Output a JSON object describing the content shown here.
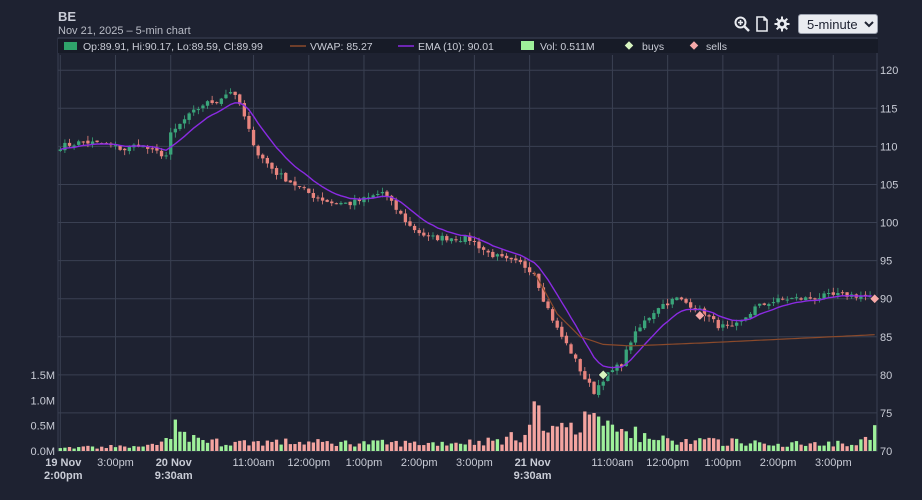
{
  "header": {
    "symbol": "BE",
    "subtitle": "Nov 21, 2025 – 5-min chart"
  },
  "toolbar": {
    "icons": [
      "zoom-in-icon",
      "document-icon",
      "gear-icon"
    ],
    "interval_selected": "5-minute",
    "interval_options": [
      "5-minute"
    ]
  },
  "legend": {
    "ohlc_label": "Op:89.91, Hi:90.17, Lo:89.59, Cl:89.99",
    "vwap_label": "VWAP: 85.27",
    "ema_label": "EMA (10): 90.01",
    "vol_label": "Vol: 0.511M",
    "buys_label": "buys",
    "sells_label": "sells"
  },
  "colors": {
    "background": "#1e2231",
    "grid": "#3a4052",
    "up": "#3aa57a",
    "down": "#e8847e",
    "vol_up": "#9ef09a",
    "vol_down": "#f4a4a0",
    "ema": "#8a2be2",
    "vwap": "#8b4a2b",
    "buy_marker": "#d8f5c0",
    "sell_marker": "#f6a8a8"
  },
  "chart_data": {
    "type": "candlestick",
    "title": "BE",
    "ylim": [
      70,
      122
    ],
    "yticks": [
      70,
      75,
      80,
      85,
      90,
      95,
      100,
      105,
      110,
      115,
      120
    ],
    "volume_ylim": [
      0,
      1.5
    ],
    "volume_ticks": [
      "0.0M",
      "0.5M",
      "1.0M",
      "1.5M"
    ],
    "xticks": [
      {
        "bar": 0,
        "label": "19 Nov",
        "label2": "2:00pm",
        "bold": true
      },
      {
        "bar": 12,
        "label": "3:00pm"
      },
      {
        "bar": 24,
        "label": "20 Nov",
        "label2": "9:30am",
        "bold": true
      },
      {
        "bar": 42,
        "label": "11:00am"
      },
      {
        "bar": 54,
        "label": "12:00pm"
      },
      {
        "bar": 66,
        "label": "1:00pm"
      },
      {
        "bar": 78,
        "label": "2:00pm"
      },
      {
        "bar": 90,
        "label": "3:00pm"
      },
      {
        "bar": 102,
        "label": "21 Nov",
        "label2": "9:30am",
        "bold": true
      },
      {
        "bar": 120,
        "label": "11:00am"
      },
      {
        "bar": 132,
        "label": "12:00pm"
      },
      {
        "bar": 144,
        "label": "1:00pm"
      },
      {
        "bar": 156,
        "label": "2:00pm"
      },
      {
        "bar": 168,
        "label": "3:00pm"
      }
    ],
    "close_anchors": [
      [
        0,
        110
      ],
      [
        5,
        110.6
      ],
      [
        10,
        110.2
      ],
      [
        14,
        109.6
      ],
      [
        17,
        110.3
      ],
      [
        20,
        109.4
      ],
      [
        23,
        108.8
      ],
      [
        24,
        111.5
      ],
      [
        27,
        113.5
      ],
      [
        31,
        115.5
      ],
      [
        34,
        116
      ],
      [
        37,
        117.3
      ],
      [
        39,
        115.5
      ],
      [
        41,
        112
      ],
      [
        43,
        109
      ],
      [
        47,
        106.5
      ],
      [
        51,
        105
      ],
      [
        55,
        103.5
      ],
      [
        59,
        102.6
      ],
      [
        63,
        102.5
      ],
      [
        67,
        103.2
      ],
      [
        70,
        104
      ],
      [
        72,
        102.5
      ],
      [
        76,
        99.5
      ],
      [
        80,
        98
      ],
      [
        85,
        98
      ],
      [
        89,
        97.8
      ],
      [
        93,
        96
      ],
      [
        97,
        95
      ],
      [
        100,
        94.6
      ],
      [
        103,
        93.5
      ],
      [
        105,
        90
      ],
      [
        108,
        86
      ],
      [
        111,
        83
      ],
      [
        114,
        79.5
      ],
      [
        116,
        77.8
      ],
      [
        118,
        79.5
      ],
      [
        120,
        80.5
      ],
      [
        122,
        81.5
      ],
      [
        124,
        84.5
      ],
      [
        127,
        87
      ],
      [
        130,
        89
      ],
      [
        134,
        90
      ],
      [
        137,
        89.2
      ],
      [
        140,
        88
      ],
      [
        143,
        86.5
      ],
      [
        146,
        86
      ],
      [
        148,
        87
      ],
      [
        151,
        88.8
      ],
      [
        154,
        89.5
      ],
      [
        158,
        90
      ],
      [
        162,
        90
      ],
      [
        166,
        90.3
      ],
      [
        170,
        90.5
      ],
      [
        174,
        90.4
      ],
      [
        177,
        90
      ]
    ],
    "vwap_anchors": [
      [
        103,
        93.5
      ],
      [
        108,
        88
      ],
      [
        113,
        85
      ],
      [
        118,
        84
      ],
      [
        124,
        83.8
      ],
      [
        140,
        84.2
      ],
      [
        177,
        85.27
      ]
    ],
    "volume_profile": [
      [
        0,
        0.06
      ],
      [
        20,
        0.1
      ],
      [
        24,
        0.25
      ],
      [
        27,
        0.3
      ],
      [
        35,
        0.16
      ],
      [
        45,
        0.18
      ],
      [
        60,
        0.16
      ],
      [
        80,
        0.15
      ],
      [
        95,
        0.2
      ],
      [
        100,
        0.3
      ],
      [
        103,
        0.55
      ],
      [
        106,
        0.45
      ],
      [
        110,
        0.42
      ],
      [
        114,
        0.45
      ],
      [
        118,
        0.42
      ],
      [
        122,
        0.3
      ],
      [
        126,
        0.25
      ],
      [
        135,
        0.2
      ],
      [
        145,
        0.18
      ],
      [
        160,
        0.14
      ],
      [
        174,
        0.18
      ],
      [
        177,
        0.28
      ]
    ],
    "volume_spikes": [
      [
        25,
        0.62
      ],
      [
        103,
        0.98
      ],
      [
        104,
        0.9
      ],
      [
        114,
        0.78
      ],
      [
        115,
        0.72
      ],
      [
        116,
        0.75
      ],
      [
        117,
        0.68
      ],
      [
        119,
        0.6
      ],
      [
        120,
        0.52
      ],
      [
        125,
        0.48
      ],
      [
        177,
        0.51
      ]
    ],
    "buys": [
      {
        "bar": 118,
        "price": 80.0
      }
    ],
    "sells": [
      {
        "bar": 139,
        "price": 87.8
      },
      {
        "bar": 177,
        "price": 89.99
      }
    ],
    "last_bar": {
      "open": 89.91,
      "high": 90.17,
      "low": 89.59,
      "close": 89.99
    },
    "series": [
      {
        "name": "VWAP",
        "last": 85.27
      },
      {
        "name": "EMA (10)",
        "last": 90.01
      },
      {
        "name": "Vol",
        "last": "0.511M"
      }
    ]
  }
}
